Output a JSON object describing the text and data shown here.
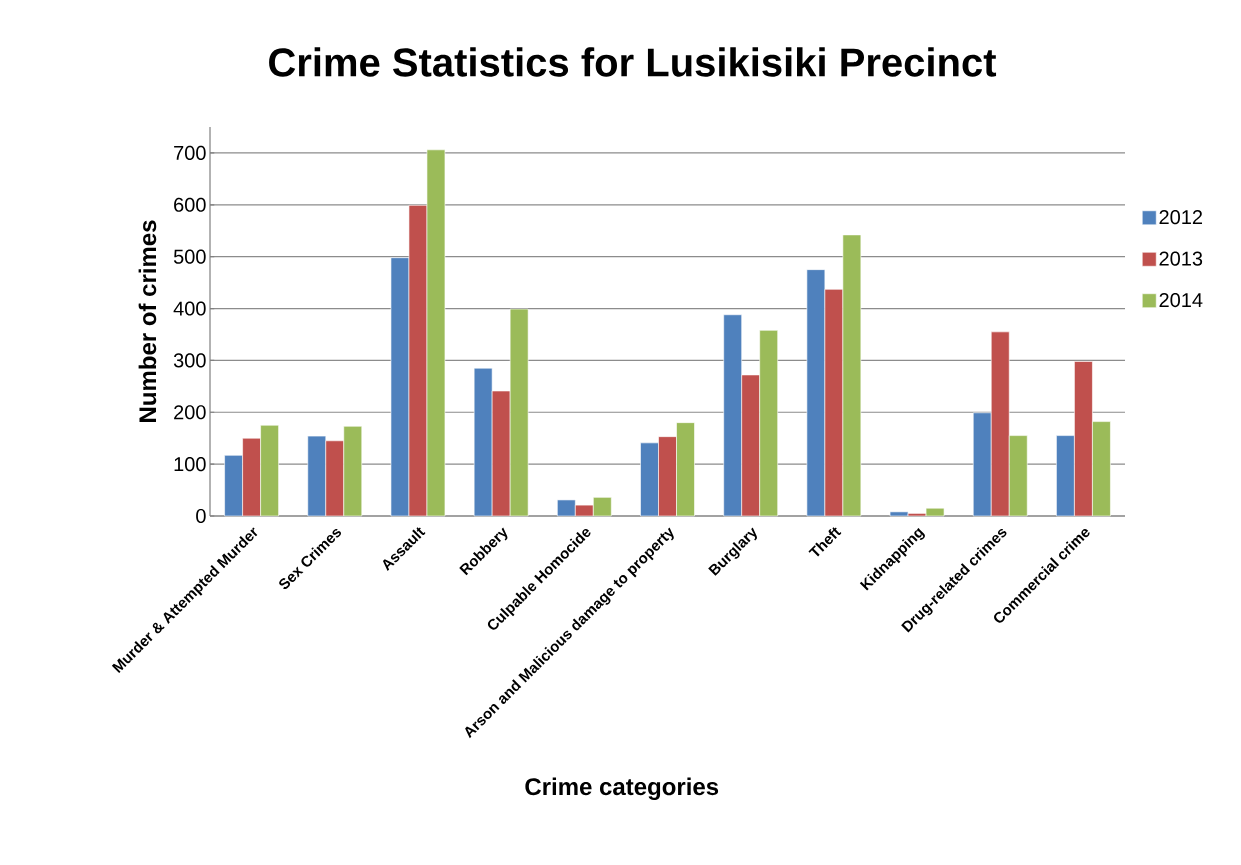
{
  "chart_data": {
    "type": "bar",
    "title": "Crime Statistics for Lusikisiki Precinct",
    "xlabel": "Crime categories",
    "ylabel": "Number of crimes",
    "categories": [
      "Murder & Attempted Murder",
      "Sex Crimes",
      "Assault",
      "Robbery",
      "Culpable Homocide",
      "Arson and Malicious damage to property",
      "Burglary",
      "Theft",
      "Kidnapping",
      "Drug-related crimes",
      "Commercial crime"
    ],
    "series": [
      {
        "name": "2012",
        "color": "#4f81bd",
        "values": [
          117,
          154,
          498,
          285,
          31,
          141,
          388,
          475,
          8,
          199,
          155
        ]
      },
      {
        "name": "2013",
        "color": "#c0504d",
        "values": [
          150,
          145,
          599,
          241,
          21,
          153,
          272,
          437,
          5,
          355,
          298
        ]
      },
      {
        "name": "2014",
        "color": "#9bbb59",
        "values": [
          175,
          173,
          706,
          399,
          36,
          180,
          358,
          542,
          15,
          155,
          182
        ]
      }
    ],
    "ylim": [
      0,
      750
    ],
    "yticks": [
      0,
      100,
      200,
      300,
      400,
      500,
      600,
      700
    ],
    "grid": "y",
    "legend": "right"
  }
}
